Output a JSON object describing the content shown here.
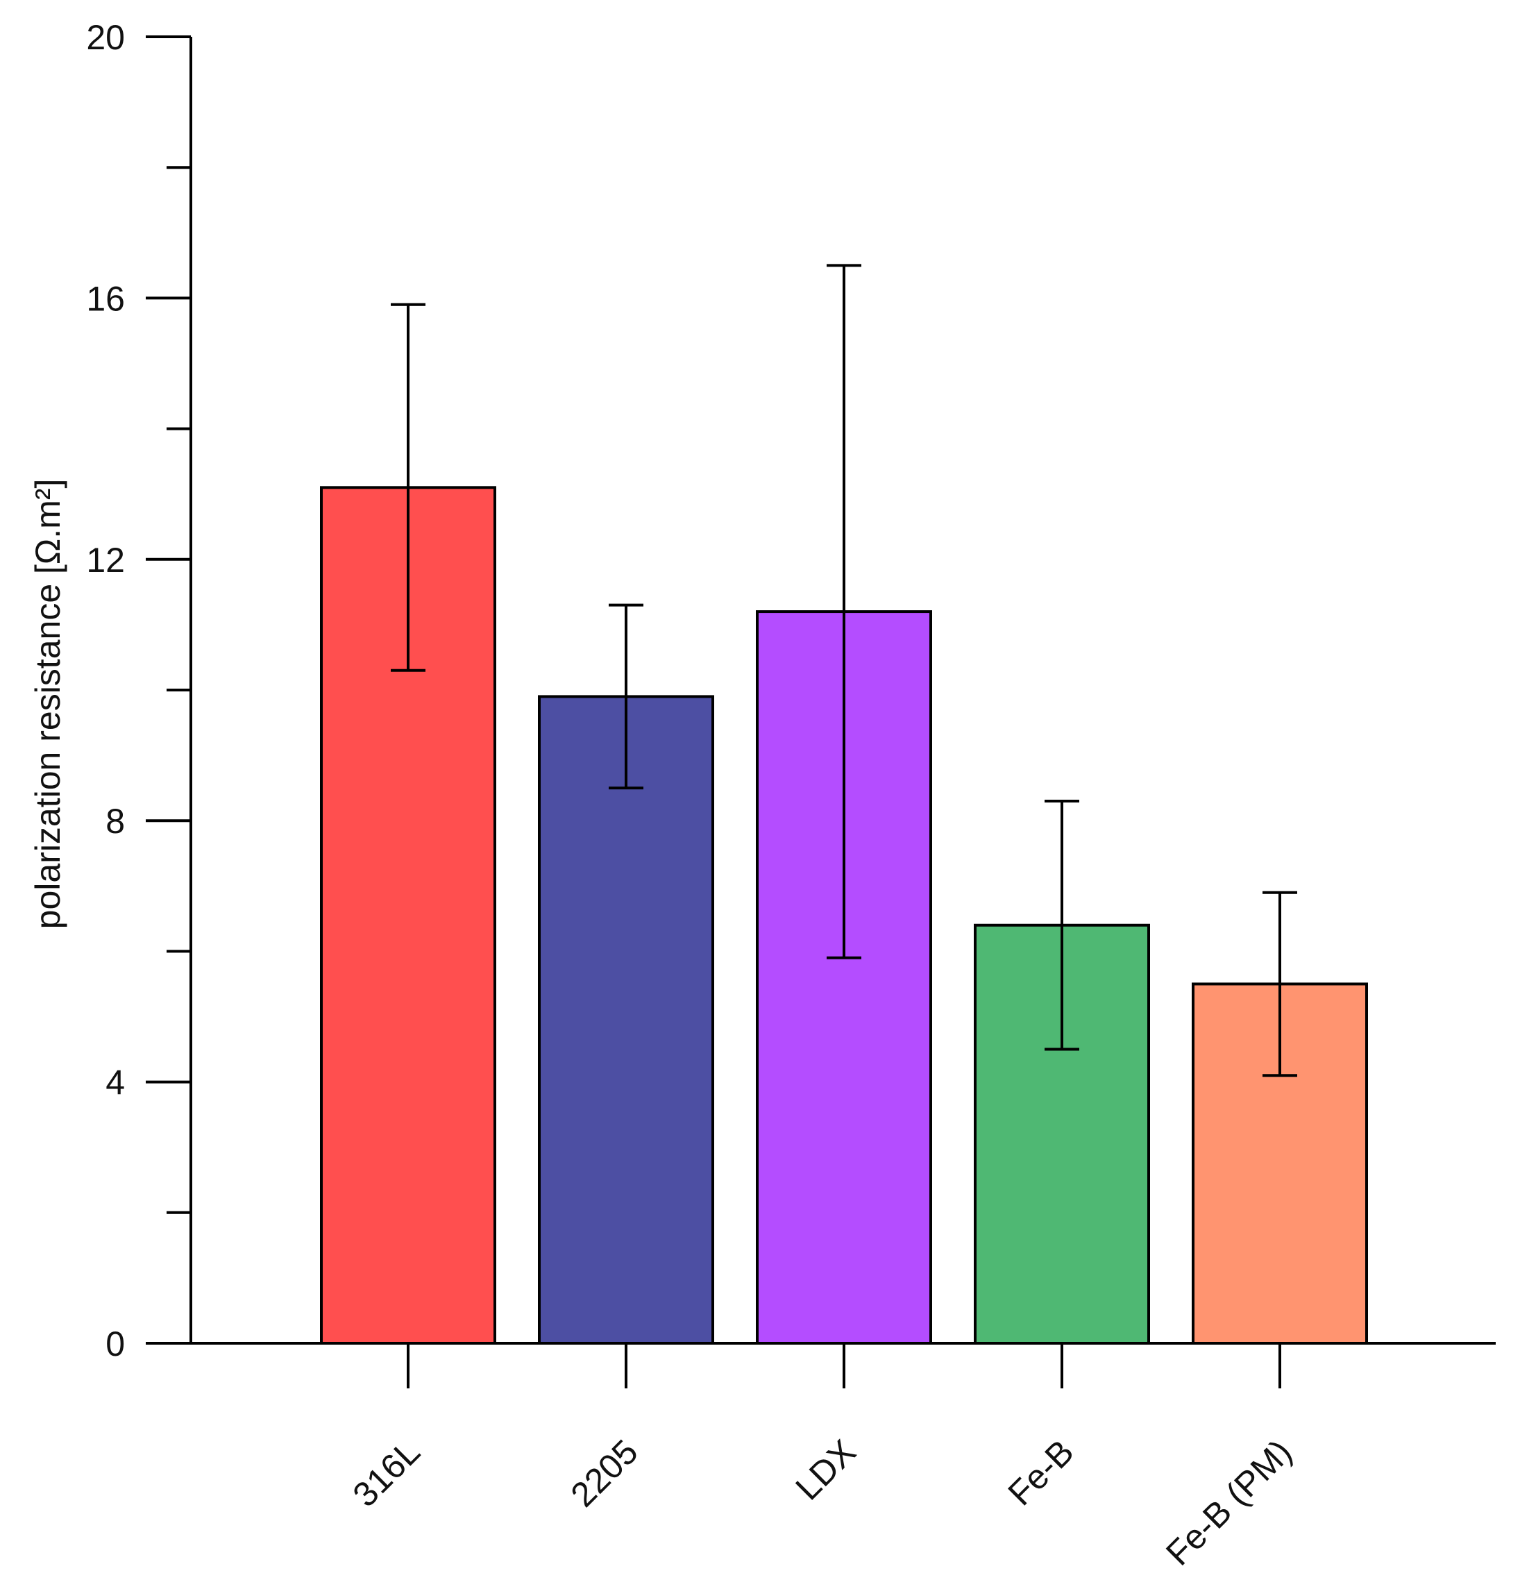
{
  "chart_data": {
    "type": "bar",
    "title": "",
    "xlabel": "",
    "ylabel": "polarization resistance [Ω.m²]",
    "ylim": [
      0,
      20
    ],
    "y_ticks": [
      0,
      4,
      8,
      12,
      16,
      20
    ],
    "y_minor_ticks": [
      2,
      6,
      10,
      14,
      18
    ],
    "categories": [
      "316L",
      "2205",
      "LDX",
      "Fe-B",
      "Fe-B (PM)"
    ],
    "values": [
      13.1,
      9.9,
      11.2,
      6.4,
      5.5
    ],
    "error_upper": [
      15.9,
      11.3,
      16.5,
      8.3,
      6.9
    ],
    "error_lower": [
      10.3,
      8.5,
      5.9,
      4.5,
      4.1
    ],
    "colors": [
      "#ff4f4f",
      "#4d4fa3",
      "#b44dff",
      "#4fb873",
      "#ff9470"
    ],
    "grid": false,
    "legend": "none"
  }
}
